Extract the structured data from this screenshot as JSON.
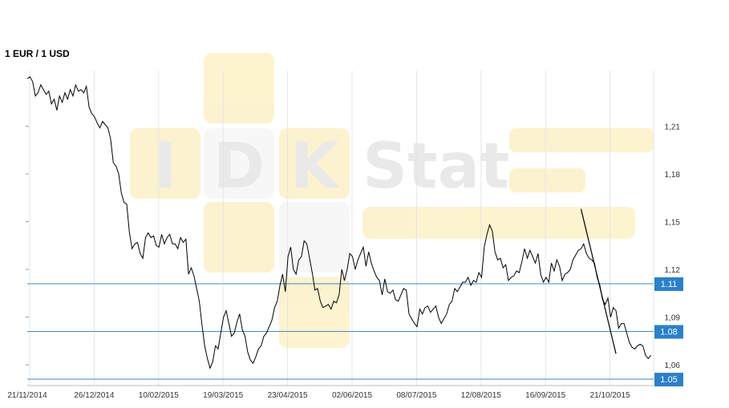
{
  "chart_data": {
    "type": "line",
    "title": "1 EUR / 1 USD",
    "xlabel": "",
    "ylabel": "",
    "ylim": [
      1.047,
      1.245
    ],
    "x_tick_labels": [
      "21/11/2014",
      "26/12/2014",
      "10/02/2015",
      "19/03/2015",
      "23/04/2015",
      "02/06/2015",
      "08/07/2015",
      "12/08/2015",
      "16/09/2015",
      "21/10/2015"
    ],
    "y_ticks": [
      1.21,
      1.18,
      1.15,
      1.12,
      1.09,
      1.06
    ],
    "y_tick_labels": [
      "1,21",
      "1,18",
      "1,15",
      "1,12",
      "1,09",
      "1,06"
    ],
    "reference_lines": [
      {
        "value": 1.111,
        "label": "1.11"
      },
      {
        "value": 1.081,
        "label": "1.08"
      },
      {
        "value": 1.051,
        "label": "1.05"
      }
    ],
    "trend_line": {
      "from": [
        206,
        1.158
      ],
      "to": [
        219,
        1.067
      ]
    },
    "series": [
      {
        "values": [
          [
            0,
            1.24
          ],
          [
            1,
            1.241
          ],
          [
            2,
            1.238
          ],
          [
            3,
            1.229
          ],
          [
            4,
            1.231
          ],
          [
            5,
            1.236
          ],
          [
            6,
            1.233
          ],
          [
            7,
            1.23
          ],
          [
            8,
            1.232
          ],
          [
            9,
            1.224
          ],
          [
            10,
            1.227
          ],
          [
            11,
            1.22
          ],
          [
            12,
            1.229
          ],
          [
            13,
            1.225
          ],
          [
            14,
            1.231
          ],
          [
            15,
            1.227
          ],
          [
            16,
            1.233
          ],
          [
            17,
            1.229
          ],
          [
            18,
            1.236
          ],
          [
            19,
            1.232
          ],
          [
            20,
            1.233
          ],
          [
            21,
            1.231
          ],
          [
            22,
            1.235
          ],
          [
            23,
            1.222
          ],
          [
            24,
            1.218
          ],
          [
            25,
            1.216
          ],
          [
            26,
            1.212
          ],
          [
            27,
            1.209
          ],
          [
            28,
            1.213
          ],
          [
            29,
            1.211
          ],
          [
            30,
            1.209
          ],
          [
            31,
            1.202
          ],
          [
            32,
            1.187
          ],
          [
            33,
            1.185
          ],
          [
            34,
            1.18
          ],
          [
            35,
            1.168
          ],
          [
            36,
            1.162
          ],
          [
            37,
            1.161
          ],
          [
            38,
            1.143
          ],
          [
            39,
            1.133
          ],
          [
            40,
            1.136
          ],
          [
            41,
            1.137
          ],
          [
            42,
            1.13
          ],
          [
            43,
            1.127
          ],
          [
            44,
            1.14
          ],
          [
            45,
            1.143
          ],
          [
            46,
            1.14
          ],
          [
            47,
            1.141
          ],
          [
            48,
            1.135
          ],
          [
            49,
            1.134
          ],
          [
            50,
            1.142
          ],
          [
            51,
            1.136
          ],
          [
            52,
            1.14
          ],
          [
            53,
            1.142
          ],
          [
            54,
            1.136
          ],
          [
            55,
            1.136
          ],
          [
            56,
            1.133
          ],
          [
            57,
            1.14
          ],
          [
            58,
            1.137
          ],
          [
            59,
            1.139
          ],
          [
            60,
            1.117
          ],
          [
            61,
            1.121
          ],
          [
            62,
            1.116
          ],
          [
            63,
            1.108
          ],
          [
            64,
            1.1
          ],
          [
            65,
            1.085
          ],
          [
            66,
            1.072
          ],
          [
            67,
            1.064
          ],
          [
            68,
            1.058
          ],
          [
            69,
            1.062
          ],
          [
            70,
            1.072
          ],
          [
            71,
            1.07
          ],
          [
            72,
            1.08
          ],
          [
            73,
            1.09
          ],
          [
            74,
            1.094
          ],
          [
            75,
            1.086
          ],
          [
            76,
            1.078
          ],
          [
            77,
            1.08
          ],
          [
            78,
            1.087
          ],
          [
            79,
            1.092
          ],
          [
            80,
            1.082
          ],
          [
            81,
            1.078
          ],
          [
            82,
            1.068
          ],
          [
            83,
            1.063
          ],
          [
            84,
            1.061
          ],
          [
            85,
            1.065
          ],
          [
            86,
            1.07
          ],
          [
            87,
            1.072
          ],
          [
            88,
            1.078
          ],
          [
            89,
            1.08
          ],
          [
            90,
            1.084
          ],
          [
            91,
            1.088
          ],
          [
            92,
            1.096
          ],
          [
            93,
            1.1
          ],
          [
            94,
            1.11
          ],
          [
            95,
            1.117
          ],
          [
            96,
            1.106
          ],
          [
            97,
            1.128
          ],
          [
            98,
            1.134
          ],
          [
            99,
            1.12
          ],
          [
            100,
            1.117
          ],
          [
            101,
            1.126
          ],
          [
            102,
            1.128
          ],
          [
            103,
            1.138
          ],
          [
            104,
            1.136
          ],
          [
            105,
            1.127
          ],
          [
            106,
            1.118
          ],
          [
            107,
            1.107
          ],
          [
            108,
            1.108
          ],
          [
            109,
            1.1
          ],
          [
            110,
            1.096
          ],
          [
            111,
            1.097
          ],
          [
            112,
            1.098
          ],
          [
            113,
            1.095
          ],
          [
            114,
            1.1
          ],
          [
            115,
            1.099
          ],
          [
            116,
            1.104
          ],
          [
            117,
            1.12
          ],
          [
            118,
            1.113
          ],
          [
            119,
            1.12
          ],
          [
            120,
            1.13
          ],
          [
            121,
            1.128
          ],
          [
            122,
            1.12
          ],
          [
            123,
            1.126
          ],
          [
            124,
            1.13
          ],
          [
            125,
            1.134
          ],
          [
            126,
            1.122
          ],
          [
            127,
            1.131
          ],
          [
            128,
            1.124
          ],
          [
            129,
            1.119
          ],
          [
            130,
            1.115
          ],
          [
            131,
            1.113
          ],
          [
            132,
            1.104
          ],
          [
            133,
            1.114
          ],
          [
            134,
            1.106
          ],
          [
            135,
            1.105
          ],
          [
            136,
            1.107
          ],
          [
            137,
            1.101
          ],
          [
            138,
            1.1
          ],
          [
            139,
            1.104
          ],
          [
            140,
            1.108
          ],
          [
            141,
            1.107
          ],
          [
            142,
            1.092
          ],
          [
            143,
            1.089
          ],
          [
            144,
            1.086
          ],
          [
            145,
            1.084
          ],
          [
            146,
            1.095
          ],
          [
            147,
            1.092
          ],
          [
            148,
            1.096
          ],
          [
            149,
            1.097
          ],
          [
            150,
            1.093
          ],
          [
            151,
            1.095
          ],
          [
            152,
            1.097
          ],
          [
            153,
            1.09
          ],
          [
            154,
            1.086
          ],
          [
            155,
            1.089
          ],
          [
            156,
            1.092
          ],
          [
            157,
            1.098
          ],
          [
            158,
            1.1
          ],
          [
            159,
            1.108
          ],
          [
            160,
            1.106
          ],
          [
            161,
            1.109
          ],
          [
            162,
            1.112
          ],
          [
            163,
            1.112
          ],
          [
            164,
            1.115
          ],
          [
            165,
            1.11
          ],
          [
            166,
            1.113
          ],
          [
            167,
            1.112
          ],
          [
            168,
            1.118
          ],
          [
            169,
            1.115
          ],
          [
            170,
            1.134
          ],
          [
            171,
            1.142
          ],
          [
            172,
            1.148
          ],
          [
            173,
            1.144
          ],
          [
            174,
            1.131
          ],
          [
            175,
            1.126
          ],
          [
            176,
            1.127
          ],
          [
            177,
            1.121
          ],
          [
            178,
            1.123
          ],
          [
            179,
            1.113
          ],
          [
            180,
            1.115
          ],
          [
            181,
            1.116
          ],
          [
            182,
            1.119
          ],
          [
            183,
            1.118
          ],
          [
            184,
            1.125
          ],
          [
            185,
            1.133
          ],
          [
            186,
            1.127
          ],
          [
            187,
            1.132
          ],
          [
            188,
            1.128
          ],
          [
            189,
            1.124
          ],
          [
            190,
            1.13
          ],
          [
            191,
            1.117
          ],
          [
            192,
            1.112
          ],
          [
            193,
            1.115
          ],
          [
            194,
            1.112
          ],
          [
            195,
            1.124
          ],
          [
            196,
            1.119
          ],
          [
            197,
            1.126
          ],
          [
            198,
            1.122
          ],
          [
            199,
            1.113
          ],
          [
            200,
            1.117
          ],
          [
            201,
            1.118
          ],
          [
            202,
            1.12
          ],
          [
            203,
            1.126
          ],
          [
            204,
            1.129
          ],
          [
            205,
            1.132
          ],
          [
            206,
            1.133
          ],
          [
            207,
            1.136
          ],
          [
            208,
            1.13
          ],
          [
            209,
            1.127
          ],
          [
            210,
            1.126
          ],
          [
            211,
            1.124
          ],
          [
            212,
            1.115
          ],
          [
            213,
            1.11
          ],
          [
            214,
            1.101
          ],
          [
            215,
            1.098
          ],
          [
            216,
            1.102
          ],
          [
            217,
            1.09
          ],
          [
            218,
            1.096
          ],
          [
            219,
            1.094
          ],
          [
            220,
            1.083
          ],
          [
            221,
            1.086
          ],
          [
            222,
            1.086
          ],
          [
            223,
            1.08
          ],
          [
            224,
            1.074
          ],
          [
            225,
            1.071
          ],
          [
            226,
            1.07
          ],
          [
            227,
            1.072
          ],
          [
            228,
            1.073
          ],
          [
            229,
            1.072
          ],
          [
            230,
            1.066
          ],
          [
            231,
            1.064
          ],
          [
            232,
            1.066
          ]
        ]
      }
    ],
    "legend": "none",
    "grid": "vertical"
  },
  "watermark": {
    "letters": [
      "I",
      "D",
      "K",
      "Stat"
    ]
  },
  "colors": {
    "line": "#000000",
    "reference": "#3a8ec4",
    "tag": "#2b80cc",
    "grid": "#e6e6e6",
    "watermark_yellow": "#fbe9a8"
  }
}
